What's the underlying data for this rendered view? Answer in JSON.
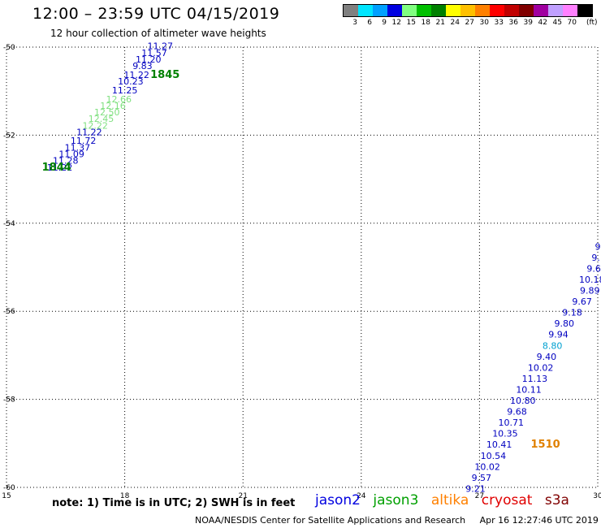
{
  "header": {
    "title": "12:00 – 23:59 UTC 04/15/2019",
    "subtitle": "12 hour collection of altimeter wave heights"
  },
  "color_scale": {
    "unit": "(ft)",
    "bins": [
      {
        "label": "3",
        "color": "#808080"
      },
      {
        "label": "6",
        "color": "#00e5ff"
      },
      {
        "label": "9",
        "color": "#00a0ff"
      },
      {
        "label": "12",
        "color": "#0000e0"
      },
      {
        "label": "15",
        "color": "#80ff80"
      },
      {
        "label": "18",
        "color": "#00c000"
      },
      {
        "label": "21",
        "color": "#008000"
      },
      {
        "label": "24",
        "color": "#ffff00"
      },
      {
        "label": "27",
        "color": "#ffc000"
      },
      {
        "label": "30",
        "color": "#ff8000"
      },
      {
        "label": "33",
        "color": "#ff0000"
      },
      {
        "label": "36",
        "color": "#c00000"
      },
      {
        "label": "39",
        "color": "#800000"
      },
      {
        "label": "42",
        "color": "#a000a0"
      },
      {
        "label": "45",
        "color": "#c0a0ff"
      },
      {
        "label": "70",
        "color": "#ff80ff"
      },
      {
        "label": "",
        "color": "#000000"
      }
    ]
  },
  "chart_data": {
    "type": "scatter",
    "x_ticks": [
      "15",
      "18",
      "21",
      "24",
      "27",
      "30"
    ],
    "y_ticks": [
      "-50",
      "-52",
      "-54",
      "-56",
      "-58",
      "-60"
    ],
    "xlim": [
      15,
      30
    ],
    "ylim": [
      -60,
      -50
    ],
    "grid": true,
    "tracks": [
      {
        "label": "1845",
        "label_color": "#008000",
        "label_lon": 18.65,
        "label_lat": -50.7,
        "points": [
          {
            "lon": 18.9,
            "lat": -50.05,
            "v": "11.27",
            "c": "#0000c0"
          },
          {
            "lon": 18.75,
            "lat": -50.2,
            "v": "11.57",
            "c": "#0000c0"
          },
          {
            "lon": 18.6,
            "lat": -50.35,
            "v": "11.20",
            "c": "#0000c0"
          },
          {
            "lon": 18.45,
            "lat": -50.5,
            "v": "9.83",
            "c": "#0000c0"
          },
          {
            "lon": 18.3,
            "lat": -50.7,
            "v": "11.22",
            "c": "#0000c0"
          },
          {
            "lon": 18.15,
            "lat": -50.85,
            "v": "10.23",
            "c": "#0000c0"
          },
          {
            "lon": 18.0,
            "lat": -51.05,
            "v": "11.25",
            "c": "#0000c0"
          },
          {
            "lon": 17.85,
            "lat": -51.25,
            "v": "12.66",
            "c": "#80e080"
          },
          {
            "lon": 17.7,
            "lat": -51.4,
            "v": "12.16",
            "c": "#80e080"
          },
          {
            "lon": 17.55,
            "lat": -51.55,
            "v": "12.50",
            "c": "#80e080"
          }
        ]
      },
      {
        "label": "1844",
        "label_color": "#008000",
        "label_lon": 15.9,
        "label_lat": -52.8,
        "points": [
          {
            "lon": 17.4,
            "lat": -51.7,
            "v": "12.45",
            "c": "#80e080"
          },
          {
            "lon": 17.25,
            "lat": -51.85,
            "v": "12.22",
            "c": "#80e080"
          },
          {
            "lon": 17.1,
            "lat": -52.0,
            "v": "11.22",
            "c": "#0000c0"
          },
          {
            "lon": 16.95,
            "lat": -52.2,
            "v": "11.72",
            "c": "#0000c0"
          },
          {
            "lon": 16.8,
            "lat": -52.35,
            "v": "11.37",
            "c": "#0000c0"
          },
          {
            "lon": 16.65,
            "lat": -52.5,
            "v": "11.09",
            "c": "#0000c0"
          },
          {
            "lon": 16.5,
            "lat": -52.65,
            "v": "11.28",
            "c": "#0000c0"
          },
          {
            "lon": 16.35,
            "lat": -52.8,
            "v": "11.22",
            "c": "#0000c0"
          }
        ]
      },
      {
        "label": "1510",
        "label_color": "#e08000",
        "label_lon": 28.3,
        "label_lat": -59.1,
        "points": [
          {
            "lon": 30.0,
            "lat": -54.6,
            "v": "9",
            "c": "#0000c0"
          },
          {
            "lon": 29.95,
            "lat": -54.85,
            "v": "9.",
            "c": "#0000c0"
          },
          {
            "lon": 29.9,
            "lat": -55.1,
            "v": "9.6",
            "c": "#0000c0"
          },
          {
            "lon": 29.85,
            "lat": -55.35,
            "v": "10.18",
            "c": "#0000c0"
          },
          {
            "lon": 29.8,
            "lat": -55.6,
            "v": "9.89",
            "c": "#0000c0"
          },
          {
            "lon": 29.6,
            "lat": -55.85,
            "v": "9.67",
            "c": "#0000c0"
          },
          {
            "lon": 29.35,
            "lat": -56.1,
            "v": "9.18",
            "c": "#0000c0"
          },
          {
            "lon": 29.15,
            "lat": -56.35,
            "v": "9.80",
            "c": "#0000c0"
          },
          {
            "lon": 29.0,
            "lat": -56.6,
            "v": "9.94",
            "c": "#0000c0"
          },
          {
            "lon": 28.85,
            "lat": -56.85,
            "v": "8.80",
            "c": "#00a0d0"
          },
          {
            "lon": 28.7,
            "lat": -57.1,
            "v": "9.40",
            "c": "#0000c0"
          },
          {
            "lon": 28.55,
            "lat": -57.35,
            "v": "10.02",
            "c": "#0000c0"
          },
          {
            "lon": 28.4,
            "lat": -57.6,
            "v": "11.13",
            "c": "#0000c0"
          },
          {
            "lon": 28.25,
            "lat": -57.85,
            "v": "10.11",
            "c": "#0000c0"
          },
          {
            "lon": 28.1,
            "lat": -58.1,
            "v": "10.80",
            "c": "#0000c0"
          },
          {
            "lon": 27.95,
            "lat": -58.35,
            "v": "9.68",
            "c": "#0000c0"
          },
          {
            "lon": 27.8,
            "lat": -58.6,
            "v": "10.71",
            "c": "#0000c0"
          },
          {
            "lon": 27.65,
            "lat": -58.85,
            "v": "10.35",
            "c": "#0000c0"
          },
          {
            "lon": 27.5,
            "lat": -59.1,
            "v": "10.41",
            "c": "#0000c0"
          },
          {
            "lon": 27.35,
            "lat": -59.35,
            "v": "10.54",
            "c": "#0000c0"
          },
          {
            "lon": 27.2,
            "lat": -59.6,
            "v": "10.02",
            "c": "#0000c0"
          },
          {
            "lon": 27.05,
            "lat": -59.85,
            "v": "9.57",
            "c": "#0000c0"
          },
          {
            "lon": 26.9,
            "lat": -60.1,
            "v": "9.21",
            "c": "#0000c0"
          }
        ]
      }
    ]
  },
  "note": "note:  1) Time is in UTC;  2) SWH is in feet",
  "legend": [
    {
      "name": "jason2",
      "color": "#0000e0"
    },
    {
      "name": "jason3",
      "color": "#00a000"
    },
    {
      "name": "altika",
      "color": "#ff8000"
    },
    {
      "name": "cryosat",
      "color": "#e00000"
    },
    {
      "name": "s3a",
      "color": "#800000"
    }
  ],
  "footer": {
    "credit": "NOAA/NESDIS Center for Satellite Applications and Research",
    "timestamp": "Apr 16 12:27:46 UTC 2019"
  }
}
